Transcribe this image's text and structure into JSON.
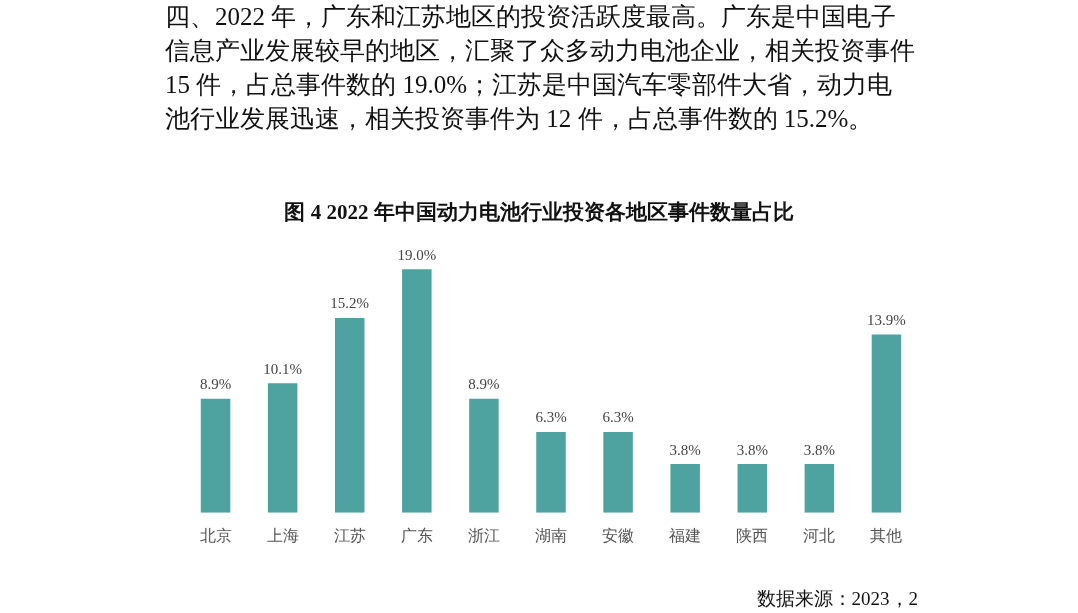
{
  "chart_data": {
    "type": "bar",
    "title": "图 4 2022 年中国动力电池行业投资各地区事件数量占比",
    "categories": [
      "北京",
      "上海",
      "江苏",
      "广东",
      "浙江",
      "湖南",
      "安徽",
      "福建",
      "陕西",
      "河北",
      "其他"
    ],
    "values": [
      8.9,
      10.1,
      15.2,
      19.0,
      8.9,
      6.3,
      6.3,
      3.8,
      3.8,
      3.8,
      13.9
    ],
    "value_labels": [
      "8.9%",
      "10.1%",
      "15.2%",
      "19.0%",
      "8.9%",
      "6.3%",
      "6.3%",
      "3.8%",
      "3.8%",
      "3.8%",
      "13.9%"
    ],
    "color": "#4ea3a0",
    "grid": false,
    "legend": false,
    "annotations": [
      "四、2022 年，广东和江苏地区的投资活跃度最高。广东是中国电子信息产业发展较早的地区，汇聚了众多动力电池企业，相关投资事件 15 件，占总事件数的 19.0%；江苏是中国汽车零部件大省，动力电池行业发展迅速，相关投资事件为 12 件，占总事件数的 15.2%。",
      "数据来源：2023，2"
    ]
  }
}
